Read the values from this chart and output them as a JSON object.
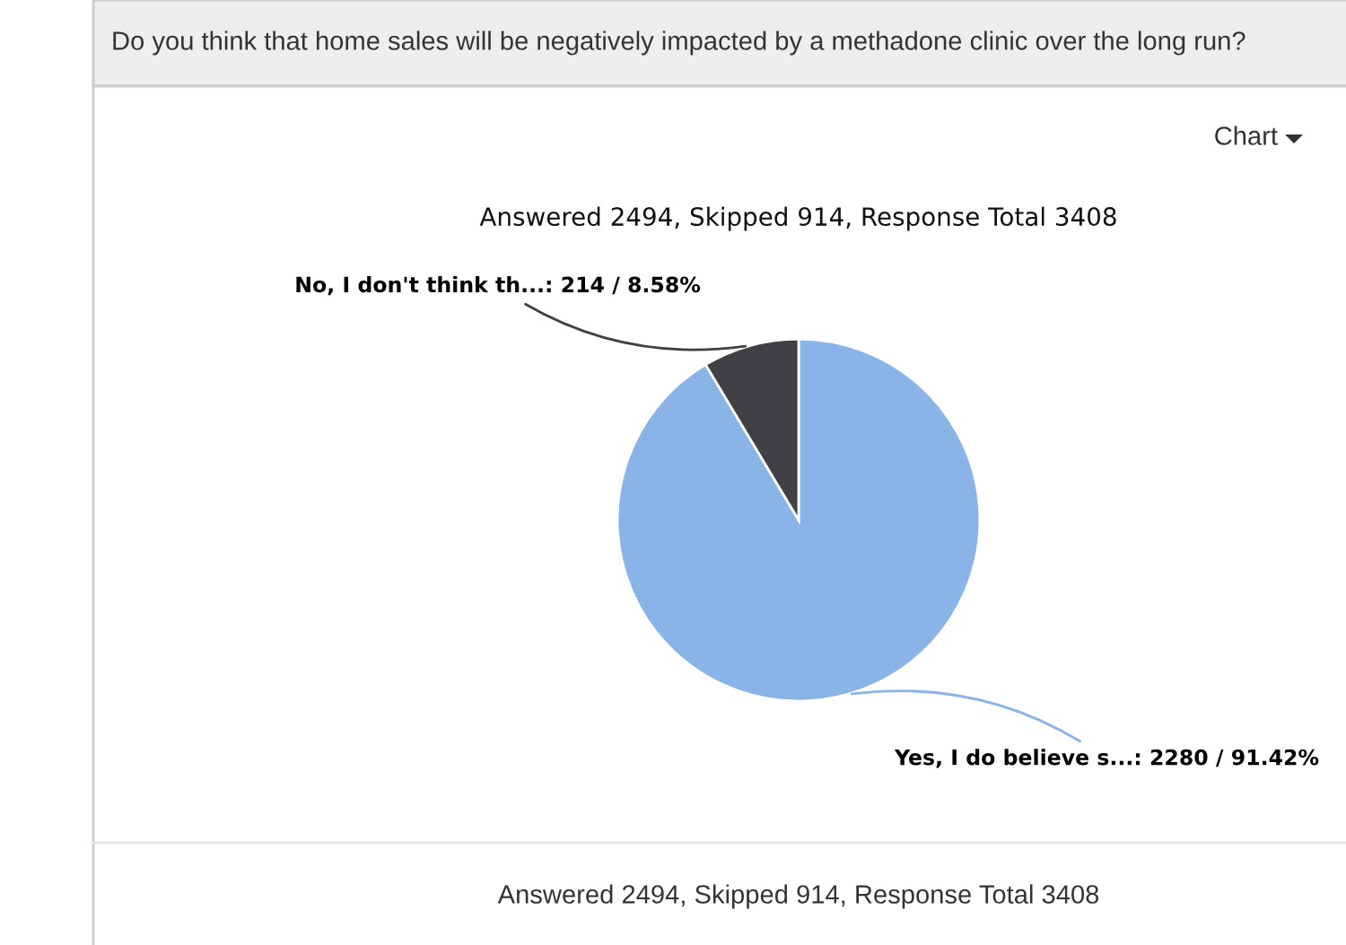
{
  "chart_data": {
    "type": "pie",
    "title": "Do you think that home sales will be negatively impacted by a methadone clinic over the long run?",
    "subtitle": "Answered 2494, Skipped 914, Response Total 3408",
    "categories": [
      "Yes, I do believe s...",
      "No, I don't think th..."
    ],
    "values": [
      2280,
      214
    ],
    "value_labels": [
      "2280 / 91.42%",
      "214 / 8.58%"
    ],
    "colors": [
      "#8ab4e8",
      "#404045"
    ],
    "annotations": [
      "Chart",
      "Answered 2494, Skipped 914, Response Total 3408"
    ]
  }
}
